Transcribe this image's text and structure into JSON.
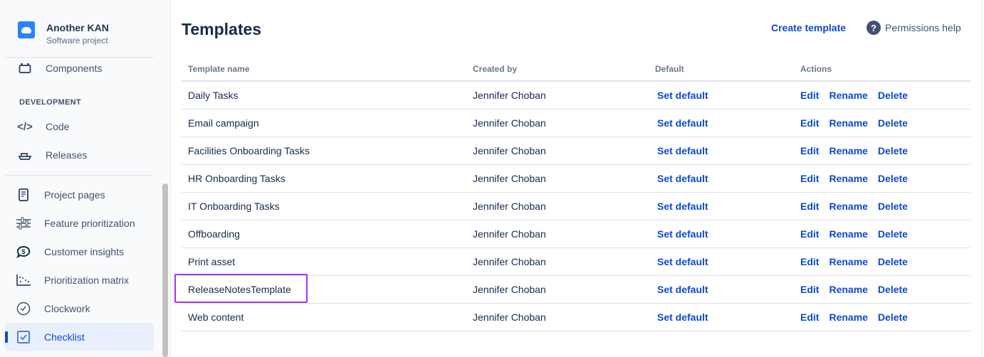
{
  "sidebar": {
    "project_name": "Another KAN",
    "project_type": "Software project",
    "section_development": "DEVELOPMENT",
    "items": [
      {
        "label": "Components",
        "icon": "components-icon"
      },
      {
        "label": "Code",
        "icon": "code-icon"
      },
      {
        "label": "Releases",
        "icon": "ship-icon"
      },
      {
        "label": "Project pages",
        "icon": "page-icon"
      },
      {
        "label": "Feature prioritization",
        "icon": "sliders-icon"
      },
      {
        "label": "Customer insights",
        "icon": "dollar-chat-icon"
      },
      {
        "label": "Prioritization matrix",
        "icon": "scatter-icon"
      },
      {
        "label": "Clockwork",
        "icon": "clock-icon"
      },
      {
        "label": "Checklist",
        "icon": "checkbox-icon",
        "active": true
      }
    ]
  },
  "header": {
    "title": "Templates",
    "create_label": "Create template",
    "permissions_label": "Permissions help"
  },
  "table": {
    "columns": [
      "Template name",
      "Created by",
      "Default",
      "Actions"
    ],
    "action_labels": {
      "set_default": "Set default",
      "edit": "Edit",
      "rename": "Rename",
      "delete": "Delete"
    },
    "rows": [
      {
        "name": "Daily Tasks",
        "created_by": "Jennifer Choban"
      },
      {
        "name": "Email campaign",
        "created_by": "Jennifer Choban"
      },
      {
        "name": "Facilities Onboarding Tasks",
        "created_by": "Jennifer Choban"
      },
      {
        "name": "HR Onboarding Tasks",
        "created_by": "Jennifer Choban"
      },
      {
        "name": "IT Onboarding Tasks",
        "created_by": "Jennifer Choban"
      },
      {
        "name": "Offboarding",
        "created_by": "Jennifer Choban"
      },
      {
        "name": "Print asset",
        "created_by": "Jennifer Choban"
      },
      {
        "name": "ReleaseNotesTemplate",
        "created_by": "Jennifer Choban",
        "highlighted": true
      },
      {
        "name": "Web content",
        "created_by": "Jennifer Choban"
      }
    ]
  },
  "colors": {
    "link": "#0c49cf",
    "highlight": "#a733f0",
    "active_bg": "#e9f0fc"
  }
}
